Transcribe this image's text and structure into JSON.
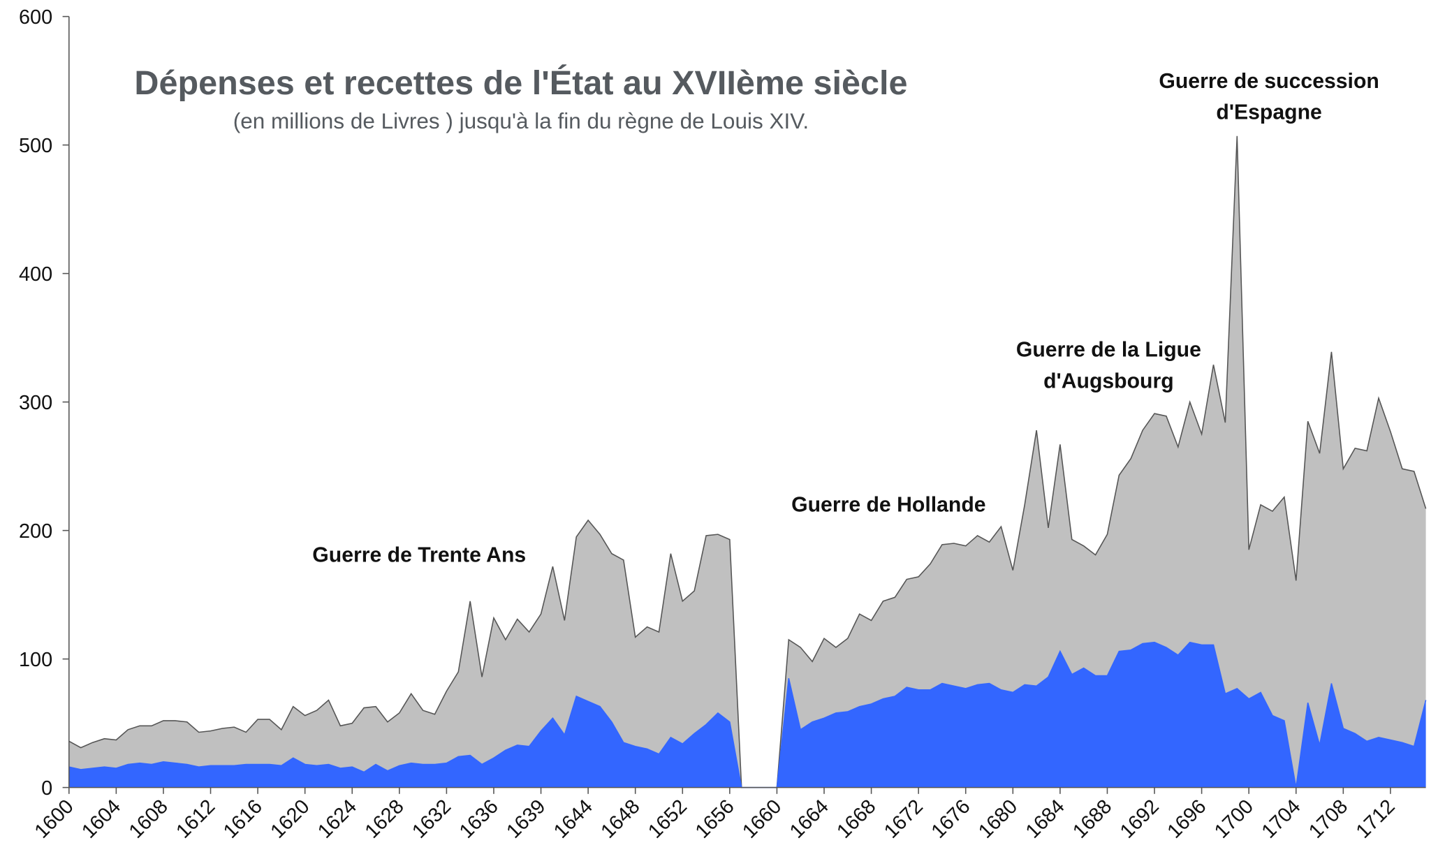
{
  "chart_data": {
    "type": "area",
    "title": "Dépenses et recettes de l'État au XVIIème siècle",
    "subtitle": "(en millions de Livres ) jusqu'à la fin du règne de Louis XIV.",
    "annotations": [
      {
        "text": [
          "Guerre de Trente Ans"
        ]
      },
      {
        "text": [
          "Guerre de Hollande"
        ]
      },
      {
        "text": [
          "Guerre de la Ligue",
          "d'Augsbourg"
        ]
      },
      {
        "text": [
          "Guerre de succession",
          "d'Espagne"
        ]
      }
    ],
    "categories": [
      "1600",
      null,
      null,
      null,
      "1604",
      null,
      null,
      null,
      "1608",
      null,
      null,
      null,
      "1612",
      null,
      null,
      null,
      "1616",
      null,
      null,
      null,
      "1620",
      null,
      null,
      null,
      "1624",
      null,
      null,
      null,
      "1628",
      null,
      null,
      null,
      "1632",
      null,
      null,
      null,
      "1636",
      null,
      null,
      null,
      "1639",
      null,
      null,
      null,
      "1644",
      null,
      null,
      null,
      "1648",
      null,
      null,
      null,
      "1652",
      null,
      null,
      null,
      "1656",
      null,
      null,
      null,
      "1660",
      null,
      null,
      null,
      "1664",
      null,
      null,
      null,
      "1668",
      null,
      null,
      null,
      "1672",
      null,
      null,
      null,
      "1676",
      null,
      null,
      null,
      "1680",
      null,
      null,
      null,
      "1684",
      null,
      null,
      null,
      "1688",
      null,
      null,
      null,
      "1692",
      null,
      null,
      null,
      "1696",
      null,
      null,
      null,
      "1700",
      null,
      null,
      null,
      "1704",
      null,
      null,
      null,
      "1708",
      null,
      null,
      null,
      "1712",
      null,
      null,
      null
    ],
    "series": [
      {
        "color": "#c0c0c0",
        "values": [
          36,
          31,
          35,
          38,
          37,
          45,
          48,
          48,
          52,
          52,
          51,
          43,
          44,
          46,
          47,
          43,
          53,
          53,
          45,
          63,
          56,
          60,
          68,
          48,
          50,
          62,
          63,
          51,
          58,
          73,
          60,
          57,
          75,
          90,
          145,
          86,
          132,
          115,
          131,
          121,
          135,
          172,
          130,
          195,
          208,
          197,
          182,
          177,
          117,
          125,
          121,
          182,
          145,
          153,
          196,
          197,
          193,
          0,
          0,
          0,
          0,
          115,
          109,
          98,
          116,
          109,
          116,
          135,
          130,
          145,
          148,
          162,
          164,
          174,
          189,
          190,
          188,
          196,
          191,
          203,
          169,
          220,
          278,
          202,
          267,
          193,
          188,
          181,
          197,
          243,
          256,
          278,
          291,
          289,
          265,
          300,
          275,
          329,
          284,
          507,
          185,
          220,
          215,
          226,
          161,
          285,
          260,
          339,
          248,
          264,
          262,
          303,
          277,
          248,
          246,
          217
        ]
      },
      {
        "color": "#3366ff",
        "values": [
          16,
          14,
          15,
          16,
          15,
          18,
          19,
          18,
          20,
          19,
          18,
          16,
          17,
          17,
          17,
          18,
          18,
          18,
          17,
          23,
          18,
          17,
          18,
          15,
          16,
          12,
          18,
          13,
          17,
          19,
          18,
          18,
          19,
          24,
          25,
          18,
          23,
          29,
          33,
          32,
          44,
          54,
          41,
          71,
          67,
          63,
          51,
          35,
          32,
          30,
          26,
          39,
          34,
          42,
          49,
          58,
          51,
          0,
          0,
          0,
          0,
          85,
          45,
          51,
          54,
          58,
          59,
          63,
          65,
          69,
          71,
          78,
          76,
          76,
          81,
          79,
          77,
          80,
          81,
          76,
          74,
          80,
          79,
          86,
          106,
          88,
          93,
          87,
          87,
          106,
          107,
          112,
          113,
          109,
          103,
          113,
          111,
          111,
          73,
          77,
          69,
          74,
          56,
          52,
          0,
          66,
          33,
          81,
          46,
          42,
          36,
          39,
          37,
          35,
          32,
          68
        ]
      }
    ],
    "ylim": [
      0,
      600
    ],
    "yticks": [
      0,
      100,
      200,
      300,
      400,
      500,
      600
    ]
  }
}
